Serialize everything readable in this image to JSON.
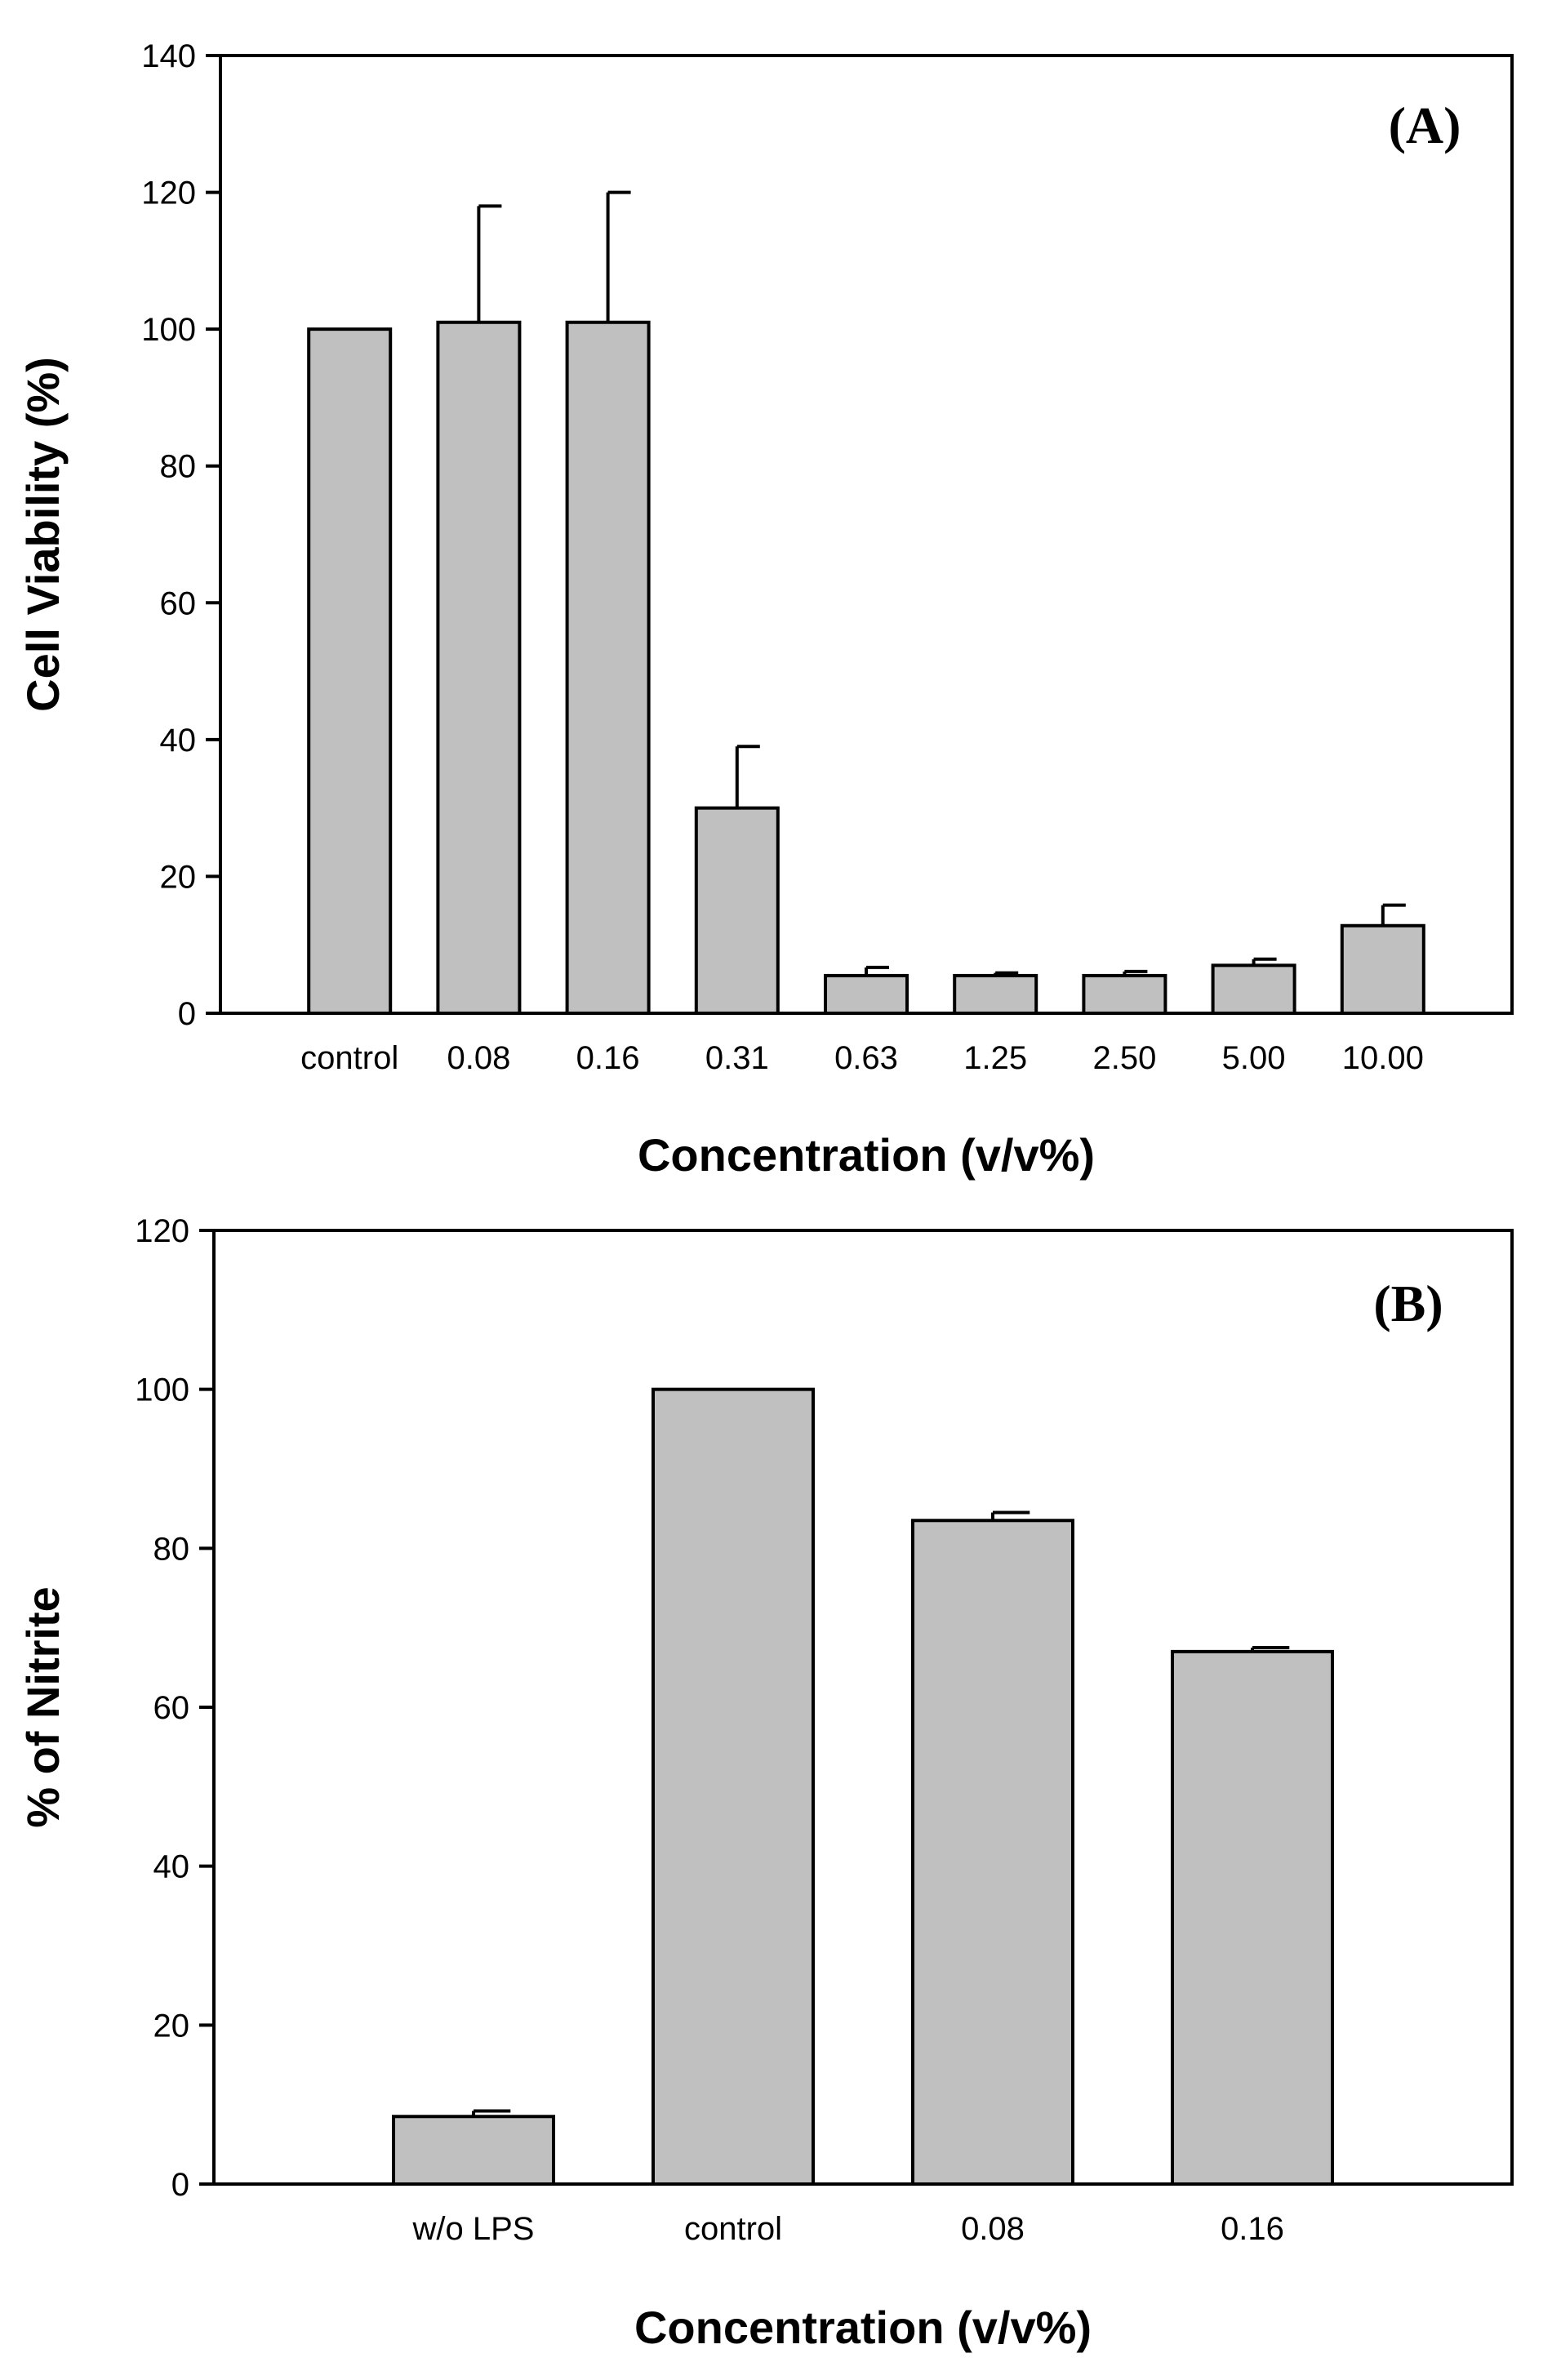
{
  "chart_data": [
    {
      "type": "bar",
      "panel_label": "(A)",
      "categories": [
        "control",
        "0.08",
        "0.16",
        "0.31",
        "0.63",
        "1.25",
        "2.50",
        "5.00",
        "10.00"
      ],
      "values": [
        100,
        101,
        101,
        30,
        5.5,
        5.5,
        5.5,
        7,
        12.8
      ],
      "errors": [
        0,
        17,
        19,
        9,
        1.2,
        0.4,
        0.6,
        0.9,
        3
      ],
      "xlabel": "Concentration (v/v%)",
      "ylabel": "Cell Viability (%)",
      "ylim": [
        0,
        140
      ],
      "yticks": [
        "0",
        "20",
        "40",
        "60",
        "80",
        "100",
        "120",
        "140"
      ],
      "grid": false
    },
    {
      "type": "bar",
      "panel_label": "(B)",
      "categories": [
        "w/o LPS",
        "control",
        "0.08",
        "0.16"
      ],
      "values": [
        8.5,
        100,
        83.5,
        67
      ],
      "errors": [
        0.7,
        0,
        1,
        0.5
      ],
      "xlabel": "Concentration (v/v%)",
      "ylabel": "% of Nitrite",
      "ylim": [
        0,
        120
      ],
      "yticks": [
        "0",
        "20",
        "40",
        "60",
        "80",
        "100",
        "120"
      ],
      "grid": false
    }
  ]
}
